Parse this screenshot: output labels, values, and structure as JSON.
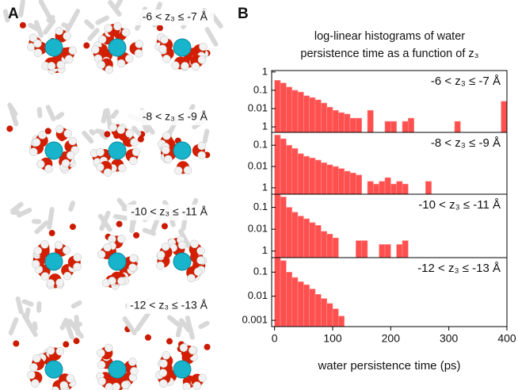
{
  "panel_labels": [
    "A",
    "B"
  ],
  "panel_a": {
    "labels": [
      "-6 < z₃ ≤ -7 Å",
      "-8 < z₃ ≤ -9 Å",
      "-10 < z₃ ≤ -11 Å",
      "-12 < z₃ ≤ -13 Å"
    ]
  },
  "figure_title": [
    "log-linear histograms of water",
    "persistence time as a function of z₃"
  ],
  "chart_data": [
    {
      "type": "histogram",
      "annotation": "-6 < z₃ ≤ -7 Å",
      "log_y": true,
      "color": "#ff5050",
      "bins": [
        0,
        10,
        20,
        30,
        40,
        50,
        60,
        70,
        80,
        90,
        100,
        110,
        120,
        130,
        140,
        150,
        160,
        170,
        180,
        190,
        200,
        210,
        220,
        230,
        240,
        250,
        260,
        270,
        280,
        290,
        300,
        310,
        320,
        330,
        340,
        350,
        360,
        370,
        380,
        390,
        400
      ],
      "values": [
        0.35,
        0.25,
        0.15,
        0.1,
        0.08,
        0.05,
        0.04,
        0.03,
        0.02,
        0.012,
        0.008,
        0.006,
        0.005,
        0.003,
        0.003,
        0,
        0.008,
        0,
        0,
        0.002,
        0.002,
        0,
        0.002,
        0.003,
        0,
        0,
        0,
        0,
        0,
        0,
        0,
        0.002,
        0,
        0,
        0,
        0,
        0,
        0,
        0,
        0.025
      ],
      "xlim": [
        -5,
        400
      ],
      "ylim": [
        0.0005,
        1.2
      ],
      "yticks": [
        1,
        0.1,
        0.01,
        {
          "value": 0.001,
          "label": "1"
        }
      ]
    },
    {
      "type": "histogram",
      "annotation": "-8 < z₃ ≤ -9 Å",
      "log_y": true,
      "color": "#ff5050",
      "bins": [
        0,
        10,
        20,
        30,
        40,
        50,
        60,
        70,
        80,
        90,
        100,
        110,
        120,
        130,
        140,
        150,
        160,
        170,
        180,
        190,
        200,
        210,
        220,
        230,
        240,
        250,
        260,
        270,
        280,
        290,
        300,
        310,
        320,
        330,
        340,
        350,
        360,
        370,
        380,
        390,
        400
      ],
      "values": [
        0.3,
        0.2,
        0.1,
        0.07,
        0.04,
        0.03,
        0.025,
        0.02,
        0.015,
        0.012,
        0.01,
        0.008,
        0.006,
        0.005,
        0.004,
        0,
        0.002,
        0.0015,
        0.002,
        0.003,
        0.0015,
        0.002,
        0.0015,
        0,
        0,
        0,
        0.002,
        0,
        0,
        0,
        0,
        0,
        0,
        0,
        0,
        0,
        0,
        0,
        0,
        0
      ],
      "xlim": [
        -5,
        400
      ],
      "ylim": [
        0.0005,
        0.4
      ],
      "yticks": [
        0.1,
        0.01,
        {
          "value": 0.001,
          "label": "1"
        }
      ]
    },
    {
      "type": "histogram",
      "annotation": "-10 < z₃ ≤ -11 Å",
      "log_y": true,
      "color": "#ff5050",
      "bins": [
        0,
        10,
        20,
        30,
        40,
        50,
        60,
        70,
        80,
        90,
        100,
        110,
        120,
        130,
        140,
        150,
        160,
        170,
        180,
        190,
        200,
        210,
        220,
        230,
        240,
        250,
        260,
        270,
        280,
        290,
        300,
        310,
        320,
        330,
        340,
        350,
        360,
        370,
        380,
        390,
        400
      ],
      "values": [
        0.4,
        0.3,
        0.1,
        0.06,
        0.04,
        0.03,
        0.02,
        0.015,
        0.008,
        0.006,
        0.004,
        0,
        0,
        0,
        0.003,
        0.003,
        0,
        0,
        0.002,
        0.002,
        0,
        0.002,
        0.003,
        0,
        0,
        0,
        0,
        0,
        0,
        0,
        0,
        0,
        0,
        0,
        0,
        0,
        0,
        0,
        0,
        0
      ],
      "xlim": [
        -5,
        400
      ],
      "ylim": [
        0.0005,
        0.4
      ],
      "yticks": [
        0.1,
        0.01,
        {
          "value": 0.001,
          "label": "1"
        }
      ]
    },
    {
      "type": "histogram",
      "annotation": "-12 < z₃ ≤ -13 Å",
      "log_y": true,
      "color": "#ff5050",
      "bins": [
        0,
        10,
        20,
        30,
        40,
        50,
        60,
        70,
        80,
        90,
        100,
        110,
        120,
        130,
        140,
        150,
        160,
        170,
        180,
        190,
        200,
        210,
        220,
        230,
        240,
        250,
        260,
        270,
        280,
        290,
        300,
        310,
        320,
        330,
        340,
        350,
        360,
        370,
        380,
        390,
        400
      ],
      "values": [
        0.4,
        0.3,
        0.1,
        0.06,
        0.04,
        0.03,
        0.02,
        0.012,
        0.008,
        0.005,
        0.003,
        0.0015,
        0,
        0,
        0,
        0,
        0,
        0,
        0,
        0,
        0,
        0,
        0,
        0,
        0,
        0,
        0,
        0,
        0,
        0,
        0,
        0,
        0,
        0,
        0,
        0,
        0,
        0,
        0,
        0
      ],
      "xlim": [
        -5,
        400
      ],
      "ylim": [
        0.00055,
        0.4
      ],
      "yticks": [
        0.1,
        0.01,
        0.001
      ],
      "xticks": [
        0,
        100,
        200,
        300,
        400
      ],
      "xlabel": "water persistence time (ps)"
    }
  ]
}
